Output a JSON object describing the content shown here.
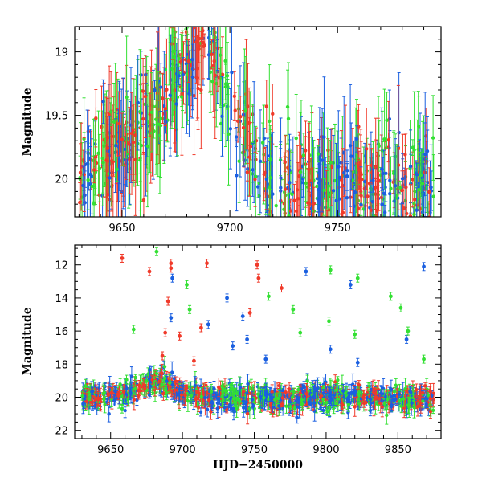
{
  "chart_data": [
    {
      "type": "scatter",
      "panel": "top",
      "title": "",
      "xlabel": "",
      "ylabel": "Magnitude",
      "xlim": [
        9628,
        9798
      ],
      "ylim": [
        20.3,
        18.8
      ],
      "y_inverted": true,
      "x_ticks": [
        9650,
        9700,
        9750
      ],
      "x_tick_labels": [
        "9650",
        "9700",
        "9750"
      ],
      "y_ticks": [
        19,
        19.5,
        20
      ],
      "y_tick_labels": [
        "19",
        "19.5",
        "20"
      ],
      "grid": false,
      "series": [
        {
          "name": "blue",
          "color": "#1a5fe0"
        },
        {
          "name": "green",
          "color": "#33e033"
        },
        {
          "name": "red",
          "color": "#f03a2a"
        }
      ],
      "x": [
        9630,
        9640,
        9650,
        9660,
        9670,
        9680,
        9686,
        9695,
        9705,
        9715,
        9725,
        9735,
        9745,
        9755,
        9765,
        9775,
        9785,
        9795
      ],
      "values": [
        20.0,
        19.85,
        19.75,
        19.6,
        19.35,
        19.05,
        18.9,
        19.15,
        19.6,
        19.95,
        20.05,
        20.0,
        20.1,
        20.0,
        20.05,
        20.0,
        20.1,
        20.05
      ]
    },
    {
      "type": "scatter",
      "panel": "bottom",
      "title": "",
      "xlabel": "HJD−2450000",
      "ylabel": "Magnitude",
      "xlim": [
        9625,
        9880
      ],
      "ylim": [
        22.5,
        10.8
      ],
      "y_inverted": true,
      "x_ticks": [
        9650,
        9700,
        9750,
        9800,
        9850
      ],
      "x_tick_labels": [
        "9650",
        "9700",
        "9750",
        "9800",
        "9850"
      ],
      "y_ticks": [
        12,
        14,
        16,
        18,
        20,
        22
      ],
      "y_tick_labels": [
        "12",
        "14",
        "16",
        "18",
        "20",
        "22"
      ],
      "grid": false,
      "series": [
        {
          "name": "blue",
          "color": "#1a5fe0"
        },
        {
          "name": "green",
          "color": "#33e033"
        },
        {
          "name": "red",
          "color": "#f03a2a"
        }
      ],
      "x": [
        9630,
        9650,
        9670,
        9685,
        9700,
        9720,
        9740,
        9760,
        9780,
        9800,
        9820,
        9840,
        9860,
        9875
      ],
      "values": [
        20.0,
        19.8,
        19.5,
        19.0,
        19.7,
        20.0,
        20.0,
        20.1,
        20.0,
        20.0,
        20.0,
        20.1,
        20.0,
        20.1
      ],
      "outliers": [
        {
          "series": "red",
          "x": 9658,
          "y": 11.6
        },
        {
          "series": "red",
          "x": 9677,
          "y": 12.4
        },
        {
          "series": "green",
          "x": 9682,
          "y": 11.2
        },
        {
          "series": "red",
          "x": 9692,
          "y": 11.9
        },
        {
          "series": "red",
          "x": 9692,
          "y": 12.2
        },
        {
          "series": "blue",
          "x": 9693,
          "y": 12.8
        },
        {
          "series": "red",
          "x": 9717,
          "y": 11.9
        },
        {
          "series": "red",
          "x": 9752,
          "y": 12.0
        },
        {
          "series": "red",
          "x": 9753,
          "y": 12.8
        },
        {
          "series": "red",
          "x": 9769,
          "y": 13.4
        },
        {
          "series": "blue",
          "x": 9786,
          "y": 12.4
        },
        {
          "series": "green",
          "x": 9803,
          "y": 12.3
        },
        {
          "series": "blue",
          "x": 9817,
          "y": 13.2
        },
        {
          "series": "green",
          "x": 9822,
          "y": 12.8
        },
        {
          "series": "blue",
          "x": 9868,
          "y": 12.1
        },
        {
          "series": "green",
          "x": 9703,
          "y": 13.2
        },
        {
          "series": "blue",
          "x": 9731,
          "y": 14.0
        },
        {
          "series": "green",
          "x": 9760,
          "y": 13.9
        },
        {
          "series": "green",
          "x": 9845,
          "y": 13.9
        },
        {
          "series": "green",
          "x": 9852,
          "y": 14.6
        },
        {
          "series": "red",
          "x": 9690,
          "y": 14.2
        },
        {
          "series": "green",
          "x": 9705,
          "y": 14.7
        },
        {
          "series": "blue",
          "x": 9742,
          "y": 15.1
        },
        {
          "series": "red",
          "x": 9747,
          "y": 14.9
        },
        {
          "series": "green",
          "x": 9777,
          "y": 14.7
        },
        {
          "series": "green",
          "x": 9802,
          "y": 15.4
        },
        {
          "series": "green",
          "x": 9666,
          "y": 15.9
        },
        {
          "series": "blue",
          "x": 9692,
          "y": 15.2
        },
        {
          "series": "red",
          "x": 9713,
          "y": 15.8
        },
        {
          "series": "blue",
          "x": 9718,
          "y": 15.6
        },
        {
          "series": "blue",
          "x": 9745,
          "y": 16.5
        },
        {
          "series": "green",
          "x": 9782,
          "y": 16.1
        },
        {
          "series": "red",
          "x": 9688,
          "y": 16.1
        },
        {
          "series": "red",
          "x": 9698,
          "y": 16.3
        },
        {
          "series": "blue",
          "x": 9735,
          "y": 16.9
        },
        {
          "series": "green",
          "x": 9820,
          "y": 16.2
        },
        {
          "series": "blue",
          "x": 9856,
          "y": 16.5
        },
        {
          "series": "blue",
          "x": 9803,
          "y": 17.1
        },
        {
          "series": "green",
          "x": 9857,
          "y": 16.0
        },
        {
          "series": "red",
          "x": 9686,
          "y": 17.5
        },
        {
          "series": "red",
          "x": 9708,
          "y": 17.8
        },
        {
          "series": "blue",
          "x": 9758,
          "y": 17.7
        },
        {
          "series": "blue",
          "x": 9822,
          "y": 17.9
        },
        {
          "series": "green",
          "x": 9868,
          "y": 17.7
        }
      ]
    }
  ]
}
